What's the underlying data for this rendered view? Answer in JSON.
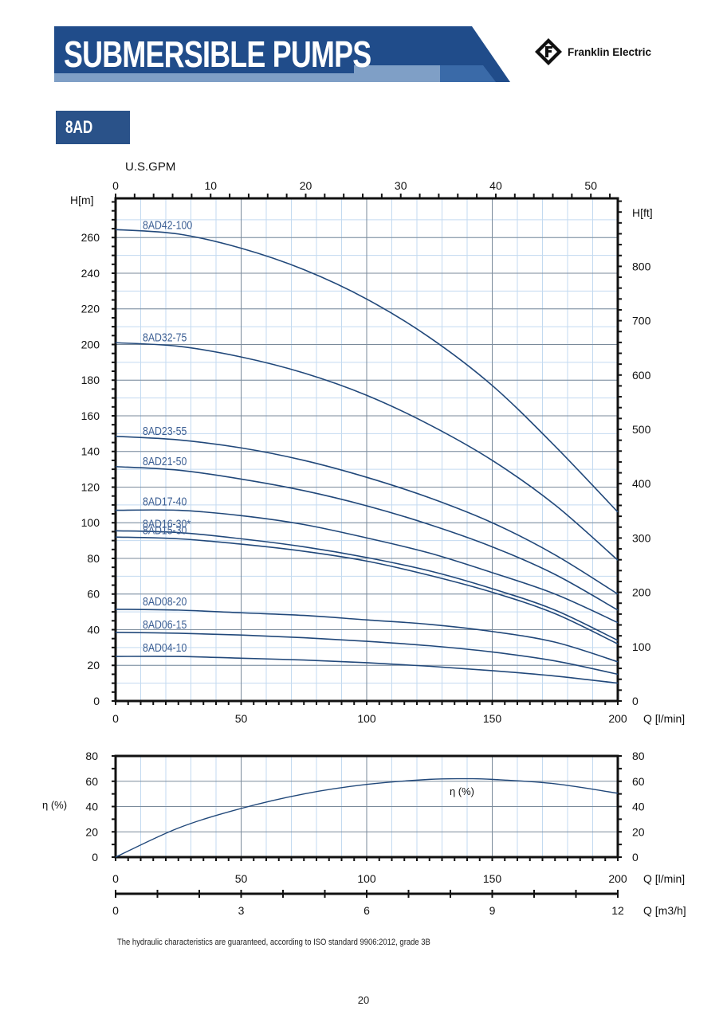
{
  "header": {
    "title": "SUBMERSIBLE PUMPS",
    "brand": "Franklin Electric",
    "model_tab": "8AD",
    "colors": {
      "dark_blue": "#204c8a",
      "mid_blue": "#4a76ad",
      "light_band": "#7f9fc6",
      "curve": "#21487a"
    }
  },
  "chart_data": [
    {
      "type": "line",
      "axis_labels": {
        "top": "U.S.GPM",
        "left": "H[m]",
        "right": "H[ft]",
        "bottom": "Q [l/min]"
      },
      "x_ticks": [
        0,
        50,
        100,
        150,
        200
      ],
      "x_top_ticks": [
        0,
        10,
        20,
        30,
        40,
        50
      ],
      "y_ticks": [
        0,
        20,
        40,
        60,
        80,
        100,
        120,
        140,
        160,
        180,
        200,
        220,
        240,
        260
      ],
      "y_right_ticks": [
        0,
        100,
        200,
        300,
        400,
        500,
        600,
        700,
        800
      ],
      "xlim": [
        0,
        200
      ],
      "ylim": [
        0,
        282
      ],
      "grid": true,
      "series": [
        {
          "name": "8AD42-100",
          "x": [
            0,
            25,
            50,
            75,
            100,
            125,
            150,
            175,
            200
          ],
          "y": [
            264.5,
            262,
            254,
            242,
            225.5,
            204,
            177,
            143,
            106
          ]
        },
        {
          "name": "8AD32-75",
          "x": [
            0,
            25,
            50,
            75,
            100,
            125,
            150,
            175,
            200
          ],
          "y": [
            201,
            199,
            193,
            184,
            171.5,
            155,
            135,
            110,
            79
          ]
        },
        {
          "name": "8AD23-55",
          "x": [
            0,
            25,
            50,
            75,
            100,
            125,
            150,
            175,
            200
          ],
          "y": [
            148.5,
            146.5,
            142,
            135,
            125.5,
            114,
            100,
            82,
            60
          ]
        },
        {
          "name": "8AD21-50",
          "x": [
            0,
            25,
            50,
            75,
            100,
            125,
            150,
            175,
            200
          ],
          "y": [
            131.5,
            129.5,
            124.5,
            118,
            109.5,
            99,
            86.5,
            71,
            51
          ]
        },
        {
          "name": "8AD17-40",
          "x": [
            0,
            25,
            50,
            75,
            100,
            125,
            150,
            175,
            200
          ],
          "y": [
            107,
            107,
            104,
            99,
            91.5,
            83,
            72,
            60,
            44
          ]
        },
        {
          "name": "8AD16-30*",
          "x": [
            0,
            25,
            50,
            75,
            100,
            125,
            150,
            175,
            200
          ],
          "y": [
            95.5,
            94.5,
            91,
            86.5,
            80.5,
            73,
            63,
            51,
            34
          ]
        },
        {
          "name": "8AD15-30",
          "x": [
            0,
            25,
            50,
            75,
            100,
            125,
            150,
            175,
            200
          ],
          "y": [
            92,
            91,
            88,
            84,
            78.5,
            70.5,
            61,
            49,
            32
          ]
        },
        {
          "name": "8AD08-20",
          "x": [
            0,
            25,
            50,
            75,
            100,
            125,
            150,
            175,
            200
          ],
          "y": [
            51.5,
            51,
            49.5,
            48,
            45.5,
            43,
            39,
            33,
            22
          ]
        },
        {
          "name": "8AD06-15",
          "x": [
            0,
            25,
            50,
            75,
            100,
            125,
            150,
            175,
            200
          ],
          "y": [
            38.5,
            38,
            37,
            35.5,
            33.5,
            31,
            27.5,
            22.5,
            15
          ]
        },
        {
          "name": "8AD04-10",
          "x": [
            0,
            25,
            50,
            75,
            100,
            125,
            150,
            175,
            200
          ],
          "y": [
            25,
            25,
            24,
            23,
            21.5,
            19.5,
            17,
            14,
            10
          ]
        }
      ]
    },
    {
      "type": "line",
      "axis_labels": {
        "left": "η (%)",
        "bottom": "Q [l/min]",
        "bottom2": "Q [m3/h]"
      },
      "x_ticks": [
        0,
        50,
        100,
        150,
        200
      ],
      "m3h_ticks": [
        0,
        3,
        6,
        9,
        12
      ],
      "y_ticks": [
        0,
        20,
        40,
        60,
        80
      ],
      "xlim": [
        0,
        200
      ],
      "ylim": [
        0,
        80
      ],
      "grid": true,
      "series": [
        {
          "name": "η (%)",
          "x": [
            0,
            25,
            50,
            75,
            100,
            125,
            140,
            150,
            175,
            200
          ],
          "y": [
            0,
            23,
            38.5,
            50,
            57.5,
            61.5,
            62,
            61.5,
            58,
            50.5
          ]
        }
      ]
    }
  ],
  "footnote": "The hydraulic characteristics are guaranteed, according to ISO standard 9906:2012, grade 3B",
  "page_number": "20"
}
